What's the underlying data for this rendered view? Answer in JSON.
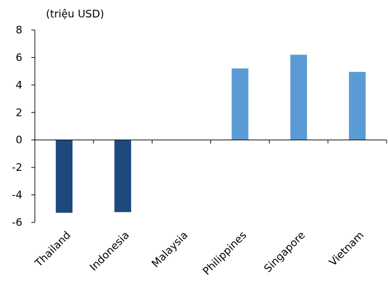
{
  "chart_data": {
    "type": "bar",
    "unit_label": "(triệu USD)",
    "categories": [
      "Thailand",
      "Indonesia",
      "Malaysia",
      "Philippines",
      "Singapore",
      "Vietnam"
    ],
    "values": [
      -5.3,
      -5.25,
      0,
      5.2,
      6.2,
      4.95
    ],
    "bar_colors": [
      "#1f497d",
      "#1f497d",
      "#1f497d",
      "#5b9bd5",
      "#5b9bd5",
      "#5b9bd5"
    ],
    "ylim": [
      -6,
      8
    ],
    "yticks": [
      -6,
      -4,
      -2,
      0,
      2,
      4,
      6,
      8
    ],
    "ytick_labels": [
      "-6",
      "-4",
      "-2",
      "0",
      "2",
      "4",
      "6",
      "8"
    ],
    "grid": false,
    "legend": "none"
  }
}
